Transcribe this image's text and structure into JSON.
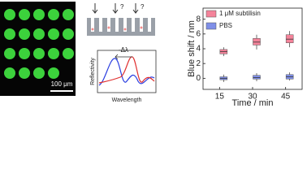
{
  "image_panel": {
    "scale_label": "100 μm"
  },
  "diagram": {
    "question_mark": "?",
    "annotation": "-Δλ",
    "y_label": "Reflectivity",
    "x_label": "Wavelength"
  },
  "chart_data": {
    "type": "box",
    "y_label": "Blue shift / nm",
    "x_label": "Time / min",
    "categories": [
      "15",
      "30",
      "45"
    ],
    "series": [
      {
        "name": "1 μM subtilisin",
        "color": "#f4839a",
        "whisker_low": [
          3.0,
          3.9,
          4.2
        ],
        "q1": [
          3.3,
          4.5,
          4.8
        ],
        "median": [
          3.6,
          4.9,
          5.3
        ],
        "q3": [
          3.9,
          5.4,
          5.9
        ],
        "whisker_high": [
          4.2,
          5.9,
          6.4
        ]
      },
      {
        "name": "PBS",
        "color": "#7f8fe8",
        "whisker_low": [
          -0.5,
          -0.4,
          -0.3
        ],
        "q1": [
          -0.2,
          -0.1,
          -0.1
        ],
        "median": [
          0,
          0.1,
          0.2
        ],
        "q3": [
          0.2,
          0.4,
          0.5
        ],
        "whisker_high": [
          0.5,
          0.7,
          0.8
        ]
      }
    ],
    "ylim": [
      -1.5,
      9.5
    ],
    "yticks": [
      0,
      2,
      4,
      6,
      8
    ],
    "legend": "upper left"
  }
}
